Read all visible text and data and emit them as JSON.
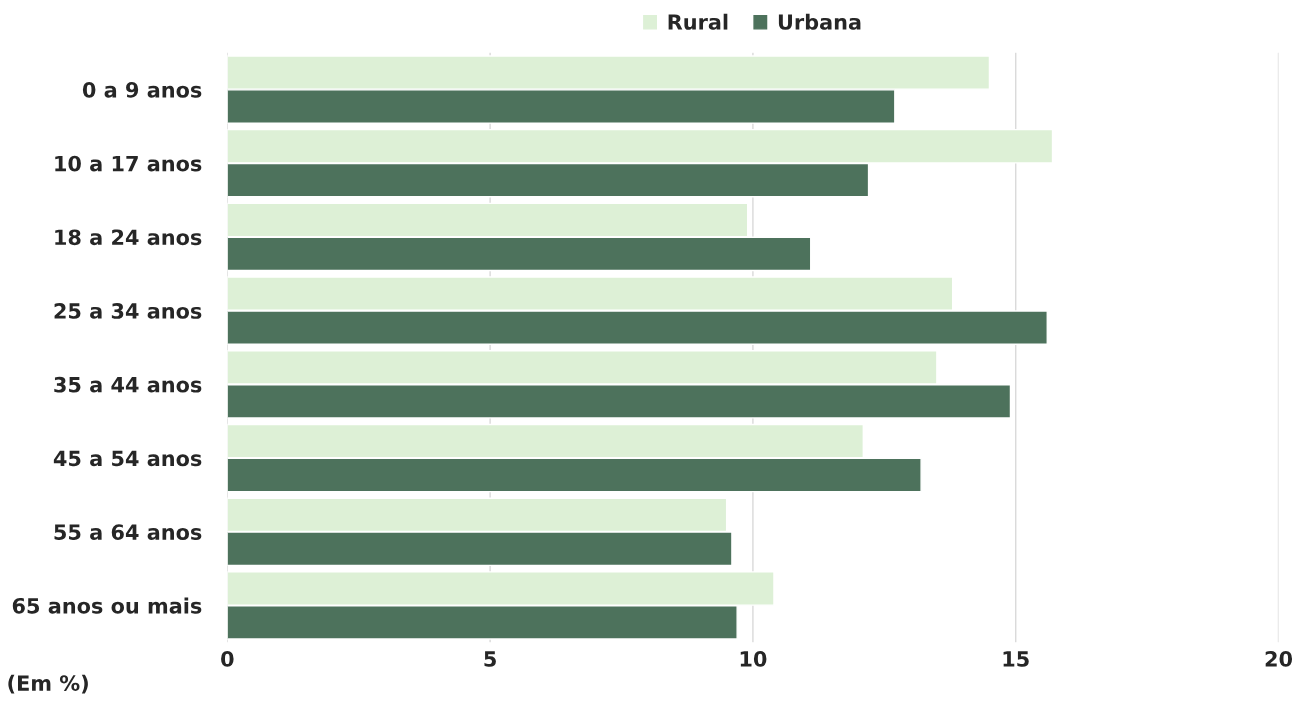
{
  "chart_data": {
    "type": "bar",
    "orientation": "horizontal",
    "categories": [
      "0 a 9 anos",
      "10 a 17 anos",
      "18 a 24 anos",
      "25 a 34 anos",
      "35 a 44 anos",
      "45 a 54 anos",
      "55 a 64 anos",
      "65 anos ou mais"
    ],
    "series": [
      {
        "name": "Rural",
        "color": "#ddf0d6",
        "values": [
          14.5,
          15.7,
          9.9,
          13.8,
          13.5,
          12.1,
          9.5,
          10.4
        ]
      },
      {
        "name": "Urbana",
        "color": "#4d725c",
        "values": [
          12.7,
          12.2,
          11.1,
          15.6,
          14.9,
          13.2,
          9.6,
          9.7
        ]
      }
    ],
    "xlim": [
      0,
      20
    ],
    "xticks": [
      0,
      5,
      10,
      15,
      20
    ],
    "grid": "x",
    "legend": "top",
    "annotations": [
      "(Em %)"
    ]
  }
}
